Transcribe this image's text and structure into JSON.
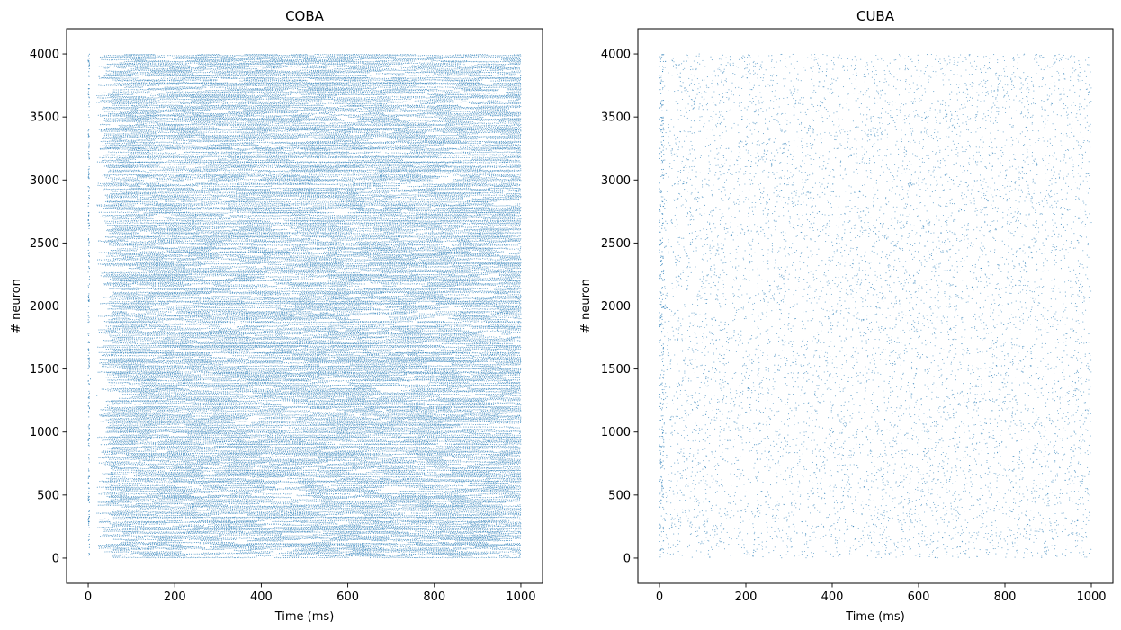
{
  "chart_data": [
    {
      "type": "scatter",
      "title": "COBA",
      "xlabel": "Time (ms)",
      "ylabel": "# neuron",
      "xlim": [
        -50,
        1050
      ],
      "ylim": [
        -200,
        4200
      ],
      "xticks": [
        0,
        200,
        400,
        600,
        800,
        1000
      ],
      "yticks": [
        0,
        500,
        1000,
        1500,
        2000,
        2500,
        3000,
        3500,
        4000
      ],
      "grid": false,
      "color": "#1f77b4",
      "density": "dense",
      "n_neurons": 4000,
      "t_range": [
        0,
        1000
      ],
      "points": [
        [
          0,
          3950
        ],
        [
          25,
          3820
        ],
        [
          60,
          3700
        ],
        [
          110,
          3560
        ],
        [
          150,
          3410
        ],
        [
          205,
          3300
        ],
        [
          250,
          3140
        ],
        [
          310,
          3020
        ],
        [
          360,
          2890
        ],
        [
          410,
          2760
        ],
        [
          470,
          2620
        ],
        [
          520,
          2510
        ],
        [
          570,
          2380
        ],
        [
          630,
          2250
        ],
        [
          680,
          2110
        ],
        [
          730,
          1990
        ],
        [
          780,
          1860
        ],
        [
          840,
          1730
        ],
        [
          890,
          1600
        ],
        [
          940,
          1470
        ],
        [
          990,
          1340
        ],
        [
          45,
          1210
        ],
        [
          95,
          1080
        ],
        [
          145,
          950
        ],
        [
          195,
          820
        ],
        [
          245,
          700
        ],
        [
          295,
          570
        ],
        [
          345,
          440
        ],
        [
          395,
          320
        ],
        [
          445,
          190
        ],
        [
          495,
          60
        ],
        [
          545,
          3890
        ],
        [
          595,
          3630
        ],
        [
          645,
          3370
        ],
        [
          695,
          3110
        ],
        [
          745,
          2850
        ],
        [
          795,
          2590
        ],
        [
          845,
          2330
        ],
        [
          895,
          2070
        ],
        [
          945,
          1810
        ],
        [
          980,
          1550
        ],
        [
          20,
          1290
        ],
        [
          70,
          1030
        ],
        [
          120,
          770
        ],
        [
          170,
          510
        ],
        [
          220,
          250
        ],
        [
          270,
          20
        ],
        [
          320,
          3980
        ],
        [
          370,
          3520
        ],
        [
          420,
          3060
        ],
        [
          480,
          2600
        ],
        [
          540,
          2140
        ],
        [
          600,
          1680
        ],
        [
          660,
          1220
        ],
        [
          720,
          760
        ],
        [
          790,
          300
        ],
        [
          860,
          3760
        ],
        [
          920,
          2980
        ],
        [
          975,
          2200
        ],
        [
          5,
          1420
        ]
      ]
    },
    {
      "type": "scatter",
      "title": "CUBA",
      "xlabel": "Time (ms)",
      "ylabel": "# neuron",
      "xlim": [
        -50,
        1050
      ],
      "ylim": [
        -200,
        4200
      ],
      "xticks": [
        0,
        200,
        400,
        600,
        800,
        1000
      ],
      "yticks": [
        0,
        500,
        1000,
        1500,
        2000,
        2500,
        3000,
        3500,
        4000
      ],
      "grid": false,
      "color": "#1f77b4",
      "density": "sparse",
      "n_neurons": 4000,
      "t_range": [
        0,
        1000
      ],
      "points": [
        [
          0,
          3900
        ],
        [
          15,
          3050
        ],
        [
          40,
          2200
        ],
        [
          80,
          3600
        ],
        [
          130,
          1500
        ],
        [
          175,
          2700
        ],
        [
          220,
          900
        ],
        [
          265,
          3300
        ],
        [
          315,
          1900
        ],
        [
          360,
          400
        ],
        [
          410,
          2500
        ],
        [
          455,
          3800
        ],
        [
          505,
          1200
        ],
        [
          550,
          2950
        ],
        [
          600,
          600
        ],
        [
          650,
          3450
        ],
        [
          700,
          1700
        ],
        [
          745,
          2300
        ],
        [
          790,
          150
        ],
        [
          840,
          3100
        ],
        [
          885,
          1050
        ],
        [
          930,
          2650
        ],
        [
          975,
          480
        ],
        [
          995,
          3700
        ],
        [
          60,
          700
        ],
        [
          110,
          2050
        ],
        [
          160,
          3250
        ],
        [
          205,
          1350
        ],
        [
          255,
          2850
        ],
        [
          300,
          250
        ],
        [
          350,
          3650
        ],
        [
          395,
          1600
        ],
        [
          440,
          800
        ],
        [
          490,
          2150
        ],
        [
          535,
          3550
        ],
        [
          585,
          1850
        ],
        [
          630,
          2400
        ],
        [
          680,
          3000
        ],
        [
          725,
          950
        ],
        [
          770,
          1450
        ],
        [
          820,
          3900
        ],
        [
          865,
          2000
        ],
        [
          915,
          1250
        ],
        [
          960,
          3350
        ],
        [
          25,
          1100
        ],
        [
          90,
          2900
        ],
        [
          240,
          2400
        ],
        [
          420,
          3150
        ]
      ]
    }
  ]
}
